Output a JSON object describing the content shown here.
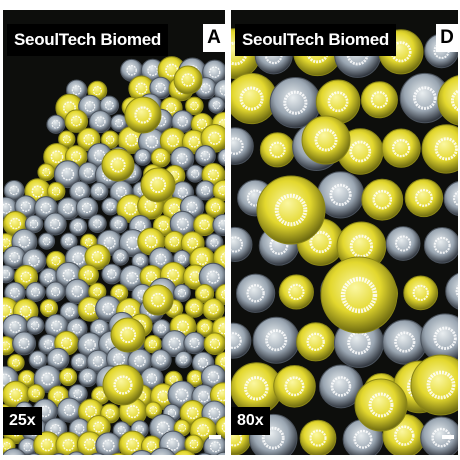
{
  "panels": [
    {
      "id": "A",
      "brand": "SeoulTech Biomed",
      "letter": "A",
      "magnification": "25x"
    },
    {
      "id": "D",
      "brand": "SeoulTech Biomed",
      "letter": "D",
      "magnification": "80x"
    }
  ],
  "colors": {
    "background": "#0c0d0a",
    "bead_yellow": "#e6e23a",
    "bead_pale": "#c9d4d6",
    "ring": "#ffffff"
  }
}
